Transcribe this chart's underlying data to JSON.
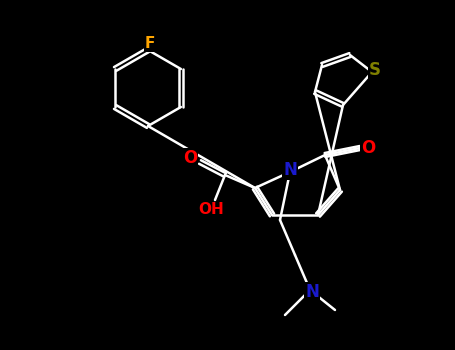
{
  "bg_color": "#000000",
  "bond_color": "#ffffff",
  "bond_lw": 1.8,
  "atom_colors": {
    "N": "#1a1acd",
    "O": "#ff0000",
    "S": "#808000",
    "F": "#ffa500",
    "C": "#ffffff",
    "H": "#ffffff"
  },
  "font_size": 11,
  "font_size_small": 9
}
